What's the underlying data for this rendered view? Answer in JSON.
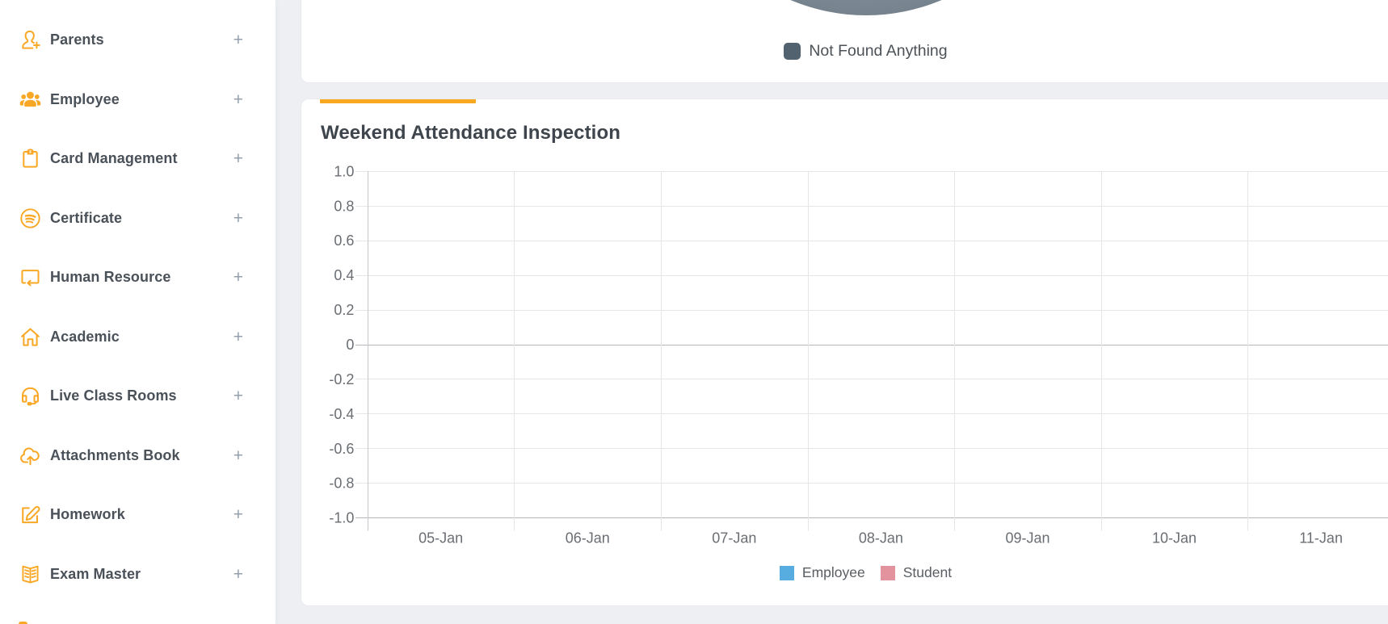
{
  "page": {
    "background_color": "#edeff3",
    "accent_orange": "#f9a826"
  },
  "sidebar": {
    "text_color": "#4a5159",
    "icon_color": "#f9a826",
    "expand_glyph": "+",
    "items": [
      {
        "label": "Parents",
        "icon": "user-plus"
      },
      {
        "label": "Employee",
        "icon": "users-group"
      },
      {
        "label": "Card Management",
        "icon": "clipboard"
      },
      {
        "label": "Certificate",
        "icon": "seal-waves"
      },
      {
        "label": "Human Resource",
        "icon": "box-return-arrow"
      },
      {
        "label": "Academic",
        "icon": "home"
      },
      {
        "label": "Live Class Rooms",
        "icon": "headset"
      },
      {
        "label": "Attachments Book",
        "icon": "cloud-upload"
      },
      {
        "label": "Homework",
        "icon": "edit-square"
      },
      {
        "label": "Exam Master",
        "icon": "open-book"
      }
    ]
  },
  "pie_card": {
    "legend": [
      {
        "label": "Not Found Anything",
        "color": "#52626f"
      }
    ],
    "slice_gradient": [
      "#87939d",
      "#6d7a85",
      "#495863"
    ]
  },
  "attendance_card": {
    "title": "Weekend Attendance Inspection",
    "accent_color": "#f9a822",
    "legend": [
      {
        "label": "Employee",
        "color": "#57ade0"
      },
      {
        "label": "Student",
        "color": "#e2939e"
      }
    ]
  },
  "chart_data": [
    {
      "type": "pie",
      "title": "",
      "slices": [
        {
          "label": "Not Found Anything",
          "color": "#5c6b77"
        }
      ],
      "legend_position": "bottom",
      "note": "only bottom arc of the pie is visible in the viewport"
    },
    {
      "type": "line",
      "title": "Weekend Attendance Inspection",
      "categories": [
        "05-Jan",
        "06-Jan",
        "07-Jan",
        "08-Jan",
        "09-Jan",
        "10-Jan",
        "11-Jan"
      ],
      "series": [
        {
          "name": "Employee",
          "color": "#57ade0",
          "values": []
        },
        {
          "name": "Student",
          "color": "#e2939e",
          "values": []
        }
      ],
      "ylim": [
        -1,
        1
      ],
      "yticks": [
        "1.0",
        "0.8",
        "0.6",
        "0.4",
        "0.2",
        "0",
        "-0.2",
        "-0.4",
        "-0.6",
        "-0.8",
        "-1.0"
      ],
      "grid": true,
      "legend_position": "bottom",
      "xlabel": "",
      "ylabel": ""
    }
  ]
}
